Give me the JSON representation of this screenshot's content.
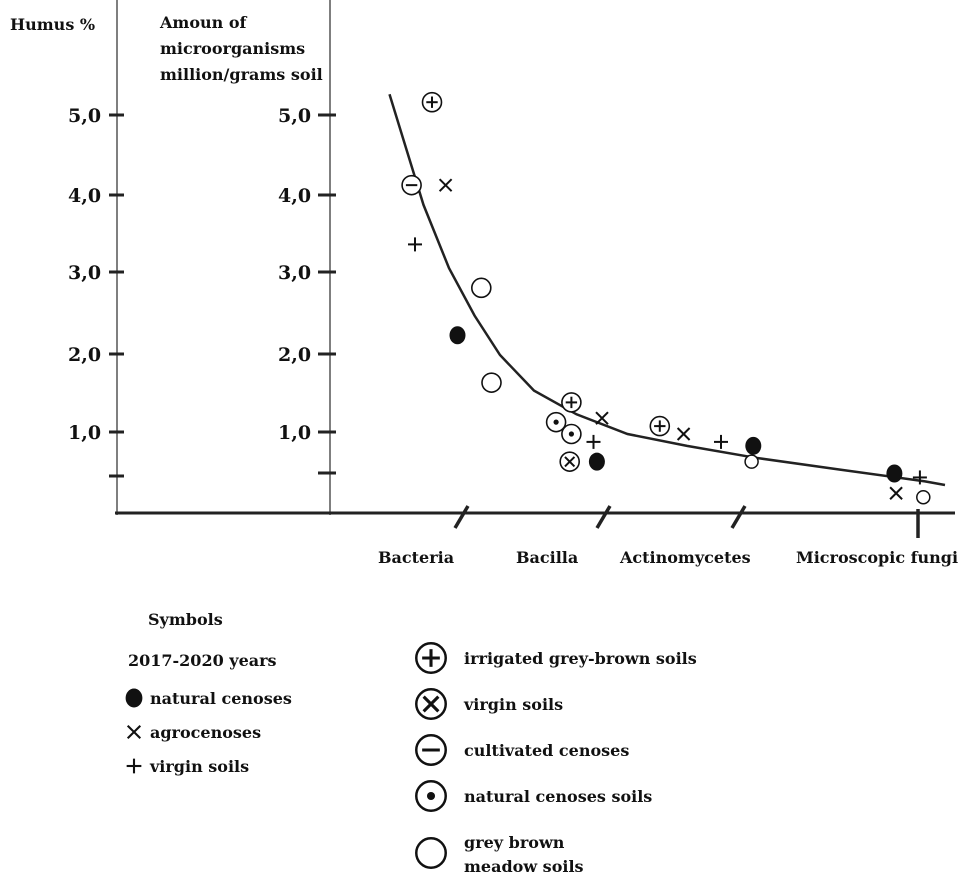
{
  "chart_data": {
    "type": "scatter",
    "axis_titles": {
      "left": "Humus %",
      "right_lines": [
        "Amoun of",
        "microorganisms",
        "million/grams soil"
      ]
    },
    "y_ticks": [
      "5,0",
      "4,0",
      "3,0",
      "2,0",
      "1,0"
    ],
    "ylim": [
      0,
      5.5
    ],
    "categories": [
      "Bacteria",
      "Bacilla",
      "Actinomycetes",
      "Microscopic fungi"
    ],
    "trend_line": {
      "x": [
        0.35,
        0.45,
        0.55,
        0.7,
        0.85,
        1.0,
        1.2,
        1.45,
        1.75,
        2.1,
        2.5,
        3.0,
        3.5
      ],
      "y": [
        5.3,
        4.6,
        3.9,
        3.1,
        2.5,
        2.0,
        1.55,
        1.25,
        1.0,
        0.85,
        0.7,
        0.55,
        0.4
      ]
    },
    "points": [
      {
        "x": 0.6,
        "y": 5.2,
        "symbol": "circle-plus"
      },
      {
        "x": 0.48,
        "y": 4.15,
        "symbol": "circle-minus"
      },
      {
        "x": 0.68,
        "y": 4.15,
        "symbol": "cross"
      },
      {
        "x": 0.5,
        "y": 3.4,
        "symbol": "plus"
      },
      {
        "x": 0.89,
        "y": 2.85,
        "symbol": "circle"
      },
      {
        "x": 0.75,
        "y": 2.25,
        "symbol": "filled"
      },
      {
        "x": 0.95,
        "y": 1.65,
        "symbol": "circle"
      },
      {
        "x": 1.42,
        "y": 1.4,
        "symbol": "circle-plus"
      },
      {
        "x": 1.6,
        "y": 1.2,
        "symbol": "cross"
      },
      {
        "x": 1.33,
        "y": 1.15,
        "symbol": "circle-dot"
      },
      {
        "x": 1.42,
        "y": 1.0,
        "symbol": "circle-dot"
      },
      {
        "x": 1.55,
        "y": 0.9,
        "symbol": "plus"
      },
      {
        "x": 1.41,
        "y": 0.65,
        "symbol": "circle-x"
      },
      {
        "x": 1.57,
        "y": 0.65,
        "symbol": "filled"
      },
      {
        "x": 1.94,
        "y": 1.1,
        "symbol": "circle-plus"
      },
      {
        "x": 2.08,
        "y": 1.0,
        "symbol": "cross"
      },
      {
        "x": 2.3,
        "y": 0.9,
        "symbol": "plus"
      },
      {
        "x": 2.49,
        "y": 0.85,
        "symbol": "filled"
      },
      {
        "x": 2.48,
        "y": 0.65,
        "symbol": "circle-small"
      },
      {
        "x": 3.32,
        "y": 0.5,
        "symbol": "filled"
      },
      {
        "x": 3.47,
        "y": 0.45,
        "symbol": "plus"
      },
      {
        "x": 3.33,
        "y": 0.25,
        "symbol": "cross"
      },
      {
        "x": 3.49,
        "y": 0.2,
        "symbol": "circle-small"
      }
    ]
  },
  "legend": {
    "title": "Symbols",
    "period": "2017-2020 years",
    "left_items": [
      {
        "symbol": "filled",
        "label": "natural cenoses"
      },
      {
        "symbol": "cross",
        "label": "agrocenoses"
      },
      {
        "symbol": "plus",
        "label": "virgin soils"
      }
    ],
    "right_items": [
      {
        "symbol": "circle-plus",
        "lines": [
          "irrigated grey-brown soils"
        ]
      },
      {
        "symbol": "circle-x",
        "lines": [
          "virgin soils"
        ]
      },
      {
        "symbol": "circle-minus",
        "lines": [
          "cultivated cenoses"
        ]
      },
      {
        "symbol": "circle-dot",
        "lines": [
          "natural cenoses soils"
        ]
      },
      {
        "symbol": "circle",
        "lines": [
          "grey brown",
          "meadow soils"
        ]
      }
    ]
  }
}
